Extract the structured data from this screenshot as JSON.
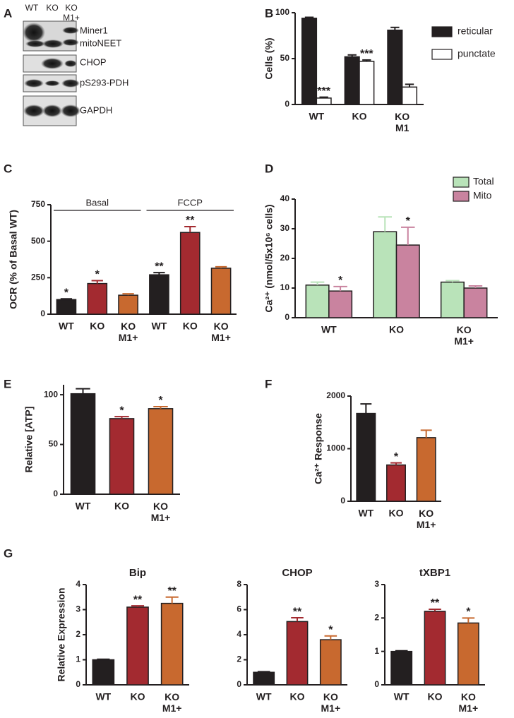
{
  "blot": {
    "panel": "A",
    "lanes": [
      "WT",
      "KO",
      "KO M1+"
    ],
    "bands": [
      "Miner1",
      "mitoNEET",
      "CHOP",
      "pS293-PDH",
      "GAPDH"
    ]
  },
  "chart_data": [
    {
      "type": "bar",
      "panel": "B",
      "ylabel": "Cells (%)",
      "categories": [
        "WT",
        "KO",
        "KO M1"
      ],
      "series": [
        {
          "name": "reticular",
          "color": "#231f20",
          "values": [
            94,
            52,
            81
          ],
          "errors": [
            1,
            2,
            3
          ]
        },
        {
          "name": "punctate",
          "color": "#ffffff",
          "values": [
            7,
            47,
            19
          ],
          "errors": [
            1,
            1.5,
            3
          ],
          "annotations": [
            "***",
            "***",
            null
          ]
        }
      ],
      "ylim": [
        0,
        100
      ],
      "yticks": [
        0,
        50,
        100
      ],
      "legend": "right"
    },
    {
      "type": "bar",
      "panel": "C",
      "ylabel": "OCR (% of Basal WT)",
      "groups": [
        "Basal",
        "FCCP"
      ],
      "categories": [
        "WT",
        "KO",
        "KO M1+",
        "WT",
        "KO",
        "KO M1+"
      ],
      "values": [
        100,
        210,
        130,
        270,
        560,
        315
      ],
      "errors": [
        5,
        20,
        10,
        15,
        40,
        10
      ],
      "colors": [
        "#231f20",
        "#a32a30",
        "#c8692f",
        "#231f20",
        "#a32a30",
        "#c8692f"
      ],
      "annotations": [
        "*",
        "*",
        null,
        "**",
        "**",
        null
      ],
      "ylim": [
        0,
        750
      ],
      "yticks": [
        0,
        250,
        500,
        750
      ]
    },
    {
      "type": "bar",
      "panel": "D",
      "ylabel": "Ca²⁺ (nmol/5x10⁶ cells)",
      "categories": [
        "WT",
        "KO",
        "KO M1+"
      ],
      "series": [
        {
          "name": "Total",
          "color": "#b9e3b9",
          "values": [
            11,
            29,
            12
          ],
          "errors": [
            1,
            5,
            0.5
          ]
        },
        {
          "name": "Mito",
          "color": "#c9839f",
          "values": [
            9,
            24.5,
            10
          ],
          "errors": [
            1.5,
            6,
            0.7
          ],
          "annotations": [
            "*",
            "*",
            null
          ]
        }
      ],
      "ylim": [
        0,
        40
      ],
      "yticks": [
        0,
        10,
        20,
        30,
        40
      ],
      "legend": "top right"
    },
    {
      "type": "bar",
      "panel": "E",
      "ylabel": "Relative [ATP]",
      "categories": [
        "WT",
        "KO",
        "KO M1+"
      ],
      "values": [
        101,
        76,
        86
      ],
      "errors": [
        5,
        2,
        2
      ],
      "colors": [
        "#231f20",
        "#a32a30",
        "#c8692f"
      ],
      "annotations": [
        null,
        "*",
        "*"
      ],
      "ylim": [
        0,
        110
      ],
      "yticks": [
        0,
        50,
        100
      ]
    },
    {
      "type": "bar",
      "panel": "F",
      "ylabel": "Ca²⁺ Response",
      "categories": [
        "WT",
        "KO",
        "KO M1+"
      ],
      "values": [
        1670,
        690,
        1210
      ],
      "errors": [
        180,
        40,
        140
      ],
      "colors": [
        "#231f20",
        "#a32a30",
        "#c8692f"
      ],
      "annotations": [
        null,
        "*",
        null
      ],
      "ylim": [
        0,
        2000
      ],
      "yticks": [
        0,
        1000,
        2000
      ]
    },
    {
      "type": "bar",
      "panel": "G",
      "title": "Bip",
      "ylabel": "Relative Expression",
      "categories": [
        "WT",
        "KO",
        "KO M1+"
      ],
      "values": [
        1,
        3.1,
        3.25
      ],
      "errors": [
        0.02,
        0.05,
        0.25
      ],
      "colors": [
        "#231f20",
        "#a32a30",
        "#c8692f"
      ],
      "annotations": [
        null,
        "**",
        "**"
      ],
      "ylim": [
        0,
        4
      ],
      "yticks": [
        0,
        1,
        2,
        3,
        4
      ]
    },
    {
      "type": "bar",
      "title": "CHOP",
      "categories": [
        "WT",
        "KO",
        "KO M1+"
      ],
      "values": [
        1,
        5.05,
        3.6
      ],
      "errors": [
        0.05,
        0.3,
        0.3
      ],
      "colors": [
        "#231f20",
        "#a32a30",
        "#c8692f"
      ],
      "annotations": [
        null,
        "**",
        "*"
      ],
      "ylim": [
        0,
        8
      ],
      "yticks": [
        0,
        2,
        4,
        6,
        8
      ]
    },
    {
      "type": "bar",
      "title": "tXBP1",
      "categories": [
        "WT",
        "KO",
        "KO M1+"
      ],
      "values": [
        1,
        2.2,
        1.85
      ],
      "errors": [
        0.02,
        0.06,
        0.15
      ],
      "colors": [
        "#231f20",
        "#a32a30",
        "#c8692f"
      ],
      "annotations": [
        null,
        "**",
        "*"
      ],
      "ylim": [
        0,
        3
      ],
      "yticks": [
        0,
        1,
        2,
        3
      ]
    }
  ]
}
